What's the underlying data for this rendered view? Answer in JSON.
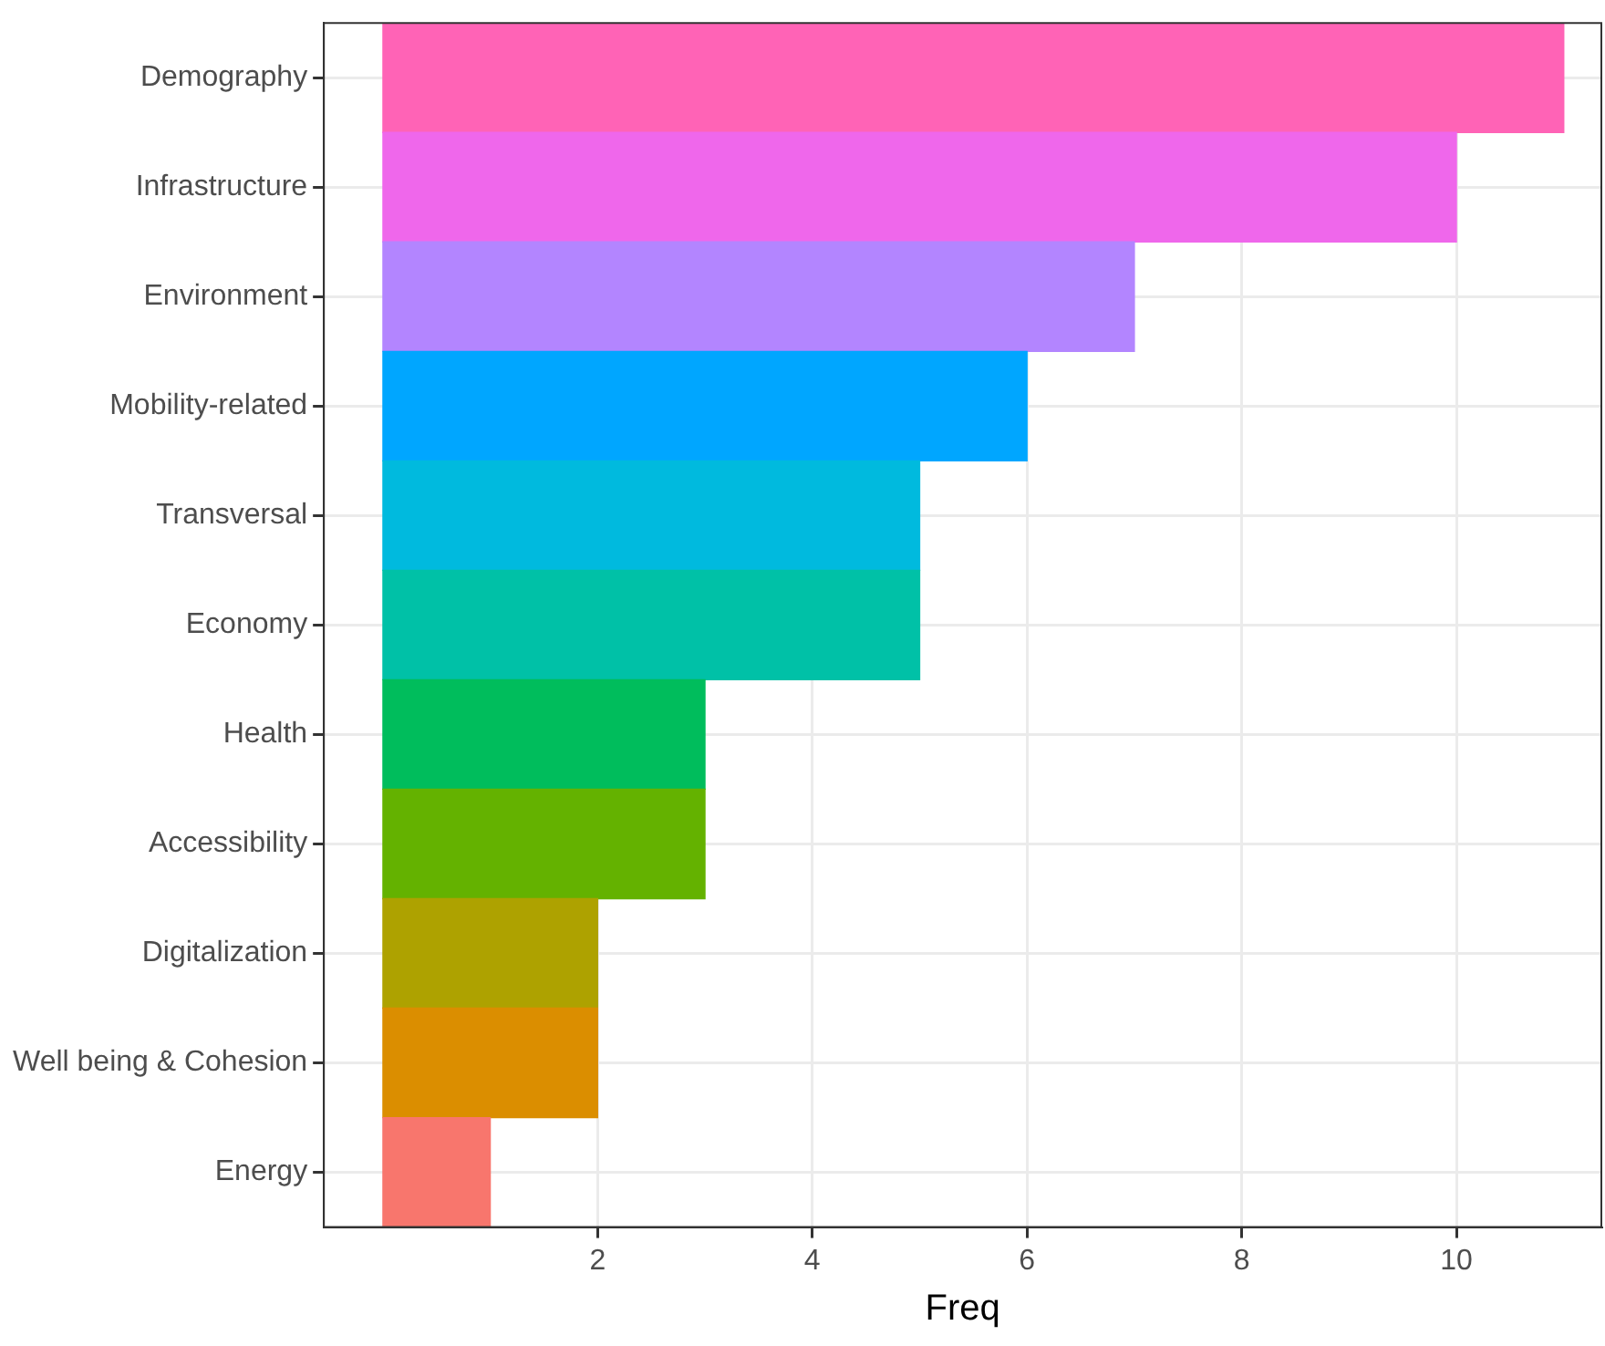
{
  "chart_data": {
    "type": "bar",
    "orientation": "horizontal",
    "xlabel": "Freq",
    "categories": [
      "Demography",
      "Infrastructure",
      "Environment",
      "Mobility-related",
      "Transversal",
      "Economy",
      "Health",
      "Accessibility",
      "Digitalization",
      "Well being & Cohesion",
      "Energy"
    ],
    "values": [
      11,
      10,
      7,
      6,
      5,
      5,
      3,
      3,
      2,
      2,
      1
    ],
    "colors": [
      "#ff63b6",
      "#ef67eb",
      "#b385ff",
      "#00a6ff",
      "#00bade",
      "#00c1a7",
      "#00bd5c",
      "#64b200",
      "#aea200",
      "#db8e00",
      "#f8766d"
    ],
    "xlim": [
      -0.55,
      11.35
    ],
    "xticks": [
      2,
      4,
      6,
      8,
      10
    ],
    "grid": true,
    "legend": false
  }
}
